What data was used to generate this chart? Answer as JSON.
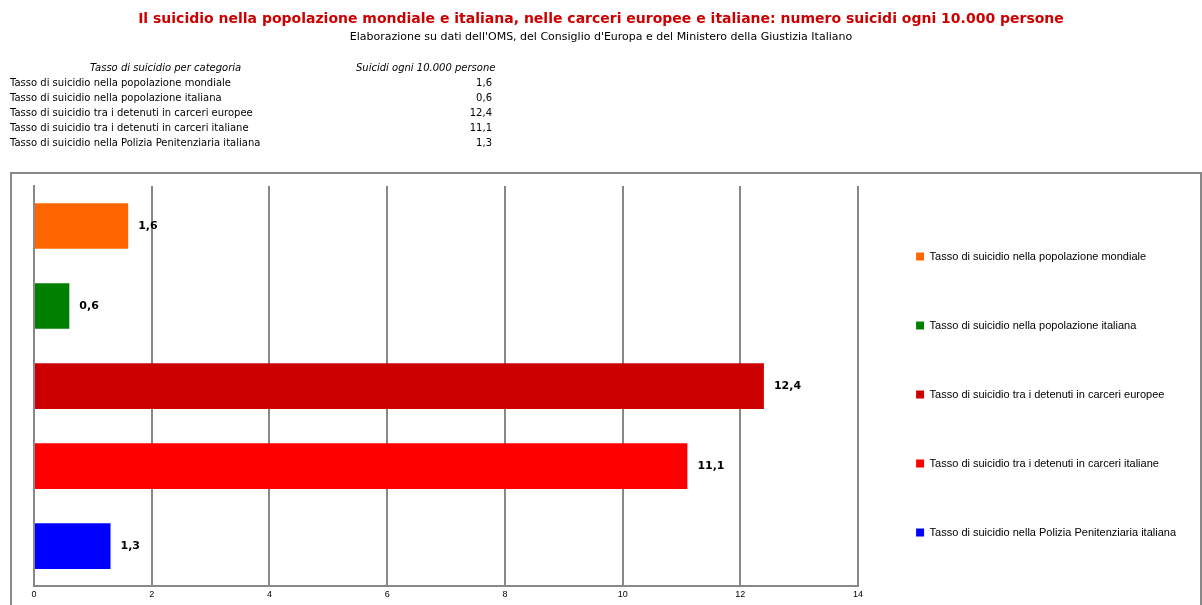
{
  "chart_data": {
    "type": "bar",
    "orientation": "horizontal",
    "title": "Il suicidio nella popolazione mondiale e italiana, nelle carceri europee e italiane: numero suicidi ogni 10.000 persone",
    "subtitle": "Elaborazione su dati dell'OMS, del Consiglio d'Europa e del Ministero della Giustizia Italiano",
    "annotations": [
      "Tasso di suicidio per categoria",
      "Suicidi ogni 10.000 persone"
    ],
    "categories": [
      null,
      null,
      null,
      null,
      null
    ],
    "series": [
      {
        "name": "Tasso di suicidio nella popolazione mondiale",
        "color": "#ff6600",
        "values": [
          1.6,
          null,
          null,
          null,
          null
        ],
        "value_labels": [
          "1,6",
          null,
          null,
          null,
          null
        ]
      },
      {
        "name": "Tasso di suicidio nella popolazione italiana",
        "color": "#008000",
        "values": [
          null,
          0.6,
          null,
          null,
          null
        ],
        "value_labels": [
          null,
          "0,6",
          null,
          null,
          null
        ]
      },
      {
        "name": "Tasso di suicidio tra i detenuti in carceri europee",
        "color": "#cc0000",
        "values": [
          null,
          null,
          12.4,
          null,
          null
        ],
        "value_labels": [
          null,
          null,
          "12,4",
          null,
          null
        ]
      },
      {
        "name": "Tasso di suicidio tra i detenuti in carceri italiane",
        "color": "#ff0000",
        "values": [
          null,
          null,
          null,
          11.1,
          null
        ],
        "value_labels": [
          null,
          null,
          null,
          "11,1",
          null
        ]
      },
      {
        "name": "Tasso di suicidio nella Polizia Penitenziaria italiana",
        "color": "#0000ff",
        "values": [
          null,
          null,
          null,
          null,
          1.3
        ],
        "value_labels": [
          null,
          null,
          null,
          null,
          "1,3"
        ]
      }
    ],
    "xlim": [
      0,
      14
    ],
    "xticks": [
      0,
      2,
      4,
      6,
      8,
      10,
      12,
      14
    ],
    "grid": "x",
    "legend": "right",
    "tick_labels": "x"
  }
}
